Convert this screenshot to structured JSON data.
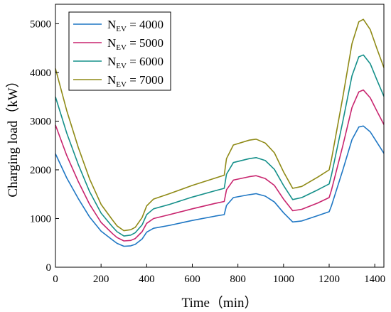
{
  "chart_data": {
    "type": "line",
    "xlabel": "Time（min）",
    "ylabel": "Charging load（kW）",
    "xlim": [
      0,
      1440
    ],
    "ylim": [
      0,
      5400
    ],
    "xticks": [
      0,
      200,
      400,
      600,
      800,
      1000,
      1200,
      1400
    ],
    "yticks": [
      0,
      1000,
      2000,
      3000,
      4000,
      5000
    ],
    "grid": false,
    "legend_position": "top-left",
    "x": [
      0,
      50,
      100,
      150,
      200,
      250,
      270,
      300,
      330,
      350,
      380,
      400,
      430,
      500,
      600,
      700,
      740,
      750,
      780,
      850,
      880,
      920,
      960,
      1000,
      1040,
      1080,
      1150,
      1200,
      1210,
      1260,
      1300,
      1330,
      1350,
      1380,
      1410,
      1440
    ],
    "series": [
      {
        "name_main": "N",
        "name_sub": "EV",
        "name_value": " = 4000",
        "color": "#1f77c4",
        "values": [
          2330,
          1830,
          1410,
          1030,
          740,
          560,
          490,
          430,
          440,
          470,
          580,
          720,
          800,
          860,
          960,
          1050,
          1080,
          1270,
          1430,
          1490,
          1510,
          1460,
          1340,
          1120,
          930,
          950,
          1060,
          1140,
          1260,
          2000,
          2620,
          2880,
          2900,
          2780,
          2560,
          2340
        ]
      },
      {
        "name_main": "N",
        "name_sub": "EV",
        "name_value": " = 5000",
        "color": "#c8246e",
        "values": [
          2920,
          2290,
          1760,
          1290,
          920,
          690,
          610,
          540,
          550,
          590,
          730,
          900,
          1000,
          1080,
          1200,
          1310,
          1350,
          1590,
          1790,
          1860,
          1880,
          1820,
          1680,
          1400,
          1160,
          1190,
          1320,
          1430,
          1580,
          2500,
          3280,
          3600,
          3640,
          3480,
          3200,
          2930
        ]
      },
      {
        "name_main": "N",
        "name_sub": "EV",
        "name_value": " = 6000",
        "color": "#15908a",
        "values": [
          3500,
          2750,
          2110,
          1550,
          1110,
          830,
          730,
          640,
          660,
          710,
          870,
          1080,
          1200,
          1290,
          1440,
          1570,
          1620,
          1910,
          2150,
          2230,
          2250,
          2190,
          2010,
          1680,
          1390,
          1430,
          1590,
          1710,
          1890,
          3000,
          3930,
          4320,
          4360,
          4180,
          3840,
          3510
        ]
      },
      {
        "name_main": "N",
        "name_sub": "EV",
        "name_value": " = 7000",
        "color": "#8f8a16",
        "values": [
          4080,
          3210,
          2460,
          1810,
          1290,
          970,
          850,
          750,
          770,
          820,
          1020,
          1260,
          1400,
          1510,
          1680,
          1830,
          1890,
          2230,
          2510,
          2610,
          2630,
          2550,
          2350,
          1960,
          1620,
          1660,
          1850,
          2000,
          2210,
          3500,
          4590,
          5040,
          5090,
          4880,
          4480,
          4100
        ]
      }
    ]
  }
}
